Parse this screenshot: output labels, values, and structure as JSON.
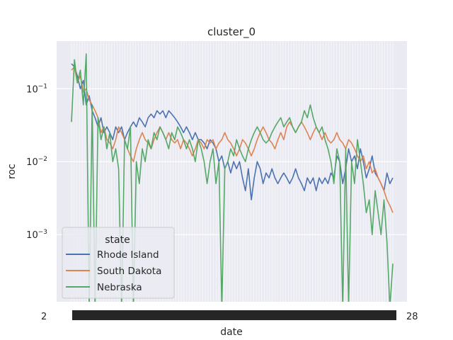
{
  "chart_data": {
    "type": "line",
    "title": "cluster_0",
    "xlabel": "date",
    "ylabel": "roc",
    "yscale": "log",
    "ylim": [
      0.00012,
      0.45
    ],
    "grid": true,
    "y_ticks": [
      {
        "value": 0.1,
        "label": "10",
        "exp": "−1"
      },
      {
        "value": 0.01,
        "label": "10",
        "exp": "−2"
      },
      {
        "value": 0.001,
        "label": "10",
        "exp": "−3"
      }
    ],
    "x_tick_label_left": "2",
    "x_tick_label_right": "28",
    "legend": {
      "title": "state",
      "placement": "lower-left"
    },
    "series": [
      {
        "name": "Rhode Island",
        "color": "#4c72b0",
        "values": [
          0.22,
          0.2,
          0.15,
          0.1,
          0.13,
          0.06,
          0.08,
          0.05,
          0.04,
          0.03,
          0.04,
          0.025,
          0.03,
          0.025,
          0.02,
          0.03,
          0.025,
          0.03,
          0.02,
          0.025,
          0.03,
          0.035,
          0.03,
          0.04,
          0.035,
          0.03,
          0.04,
          0.045,
          0.04,
          0.05,
          0.045,
          0.05,
          0.04,
          0.05,
          0.045,
          0.04,
          0.035,
          0.03,
          0.025,
          0.03,
          0.025,
          0.02,
          0.025,
          0.02,
          0.02,
          0.018,
          0.015,
          0.02,
          0.018,
          0.015,
          0.01,
          0.012,
          0.008,
          0.01,
          0.007,
          0.01,
          0.008,
          0.01,
          0.006,
          0.004,
          0.008,
          0.003,
          0.006,
          0.01,
          0.008,
          0.005,
          0.007,
          0.006,
          0.008,
          0.006,
          0.005,
          0.006,
          0.007,
          0.006,
          0.005,
          0.006,
          0.008,
          0.006,
          0.005,
          0.004,
          0.006,
          0.005,
          0.006,
          0.004,
          0.006,
          0.005,
          0.006,
          0.005,
          0.007,
          0.006,
          0.012,
          0.01,
          0.005,
          0.008,
          0.015,
          0.01,
          0.012,
          0.008,
          0.015,
          0.01,
          0.006,
          0.008,
          0.012,
          0.007,
          0.006,
          0.005,
          0.004,
          0.007,
          0.005,
          0.006
        ]
      },
      {
        "name": "South Dakota",
        "color": "#dd8452",
        "values": [
          0.18,
          0.2,
          0.12,
          0.15,
          0.09,
          0.1,
          0.07,
          0.06,
          0.05,
          0.04,
          0.025,
          0.03,
          0.02,
          0.018,
          0.015,
          0.02,
          0.03,
          0.025,
          0.02,
          0.015,
          0.012,
          0.01,
          0.015,
          0.02,
          0.025,
          0.02,
          0.018,
          0.015,
          0.02,
          0.025,
          0.03,
          0.025,
          0.02,
          0.025,
          0.02,
          0.018,
          0.02,
          0.015,
          0.02,
          0.018,
          0.015,
          0.012,
          0.015,
          0.02,
          0.018,
          0.015,
          0.02,
          0.018,
          0.02,
          0.015,
          0.018,
          0.02,
          0.025,
          0.02,
          0.018,
          0.015,
          0.012,
          0.015,
          0.02,
          0.018,
          0.015,
          0.012,
          0.015,
          0.02,
          0.025,
          0.03,
          0.025,
          0.02,
          0.018,
          0.015,
          0.02,
          0.025,
          0.02,
          0.03,
          0.035,
          0.03,
          0.025,
          0.03,
          0.035,
          0.03,
          0.025,
          0.02,
          0.025,
          0.03,
          0.025,
          0.02,
          0.025,
          0.02,
          0.018,
          0.02,
          0.025,
          0.02,
          0.018,
          0.015,
          0.02,
          0.018,
          0.015,
          0.012,
          0.01,
          0.012,
          0.008,
          0.01,
          0.007,
          0.008,
          0.006,
          0.005,
          0.004,
          0.003,
          0.0025,
          0.002
        ]
      },
      {
        "name": "Nebraska",
        "color": "#55a868",
        "values": [
          0.035,
          0.25,
          0.12,
          0.18,
          0.06,
          0.3,
          0.0001,
          0.06,
          0.0001,
          0.04,
          0.02,
          0.03,
          0.015,
          0.025,
          0.01,
          0.015,
          0.008,
          0.0001,
          0.02,
          0.015,
          0.03,
          0.0001,
          0.01,
          0.005,
          0.015,
          0.01,
          0.02,
          0.015,
          0.025,
          0.02,
          0.03,
          0.025,
          0.02,
          0.015,
          0.025,
          0.02,
          0.03,
          0.025,
          0.02,
          0.015,
          0.02,
          0.015,
          0.01,
          0.02,
          0.015,
          0.01,
          0.005,
          0.01,
          0.015,
          0.005,
          0.01,
          0.0001,
          0.008,
          0.01,
          0.015,
          0.012,
          0.02,
          0.015,
          0.012,
          0.01,
          0.015,
          0.02,
          0.025,
          0.03,
          0.025,
          0.02,
          0.018,
          0.02,
          0.025,
          0.03,
          0.035,
          0.04,
          0.03,
          0.035,
          0.04,
          0.03,
          0.025,
          0.03,
          0.035,
          0.05,
          0.04,
          0.06,
          0.04,
          0.03,
          0.025,
          0.03,
          0.02,
          0.015,
          0.01,
          0.005,
          0.015,
          0.01,
          0.0001,
          0.015,
          0.0001,
          0.01,
          0.005,
          0.02,
          0.01,
          0.005,
          0.002,
          0.003,
          0.001,
          0.004,
          0.002,
          0.001,
          0.003,
          0.0008,
          0.0001,
          0.0004
        ]
      }
    ]
  }
}
